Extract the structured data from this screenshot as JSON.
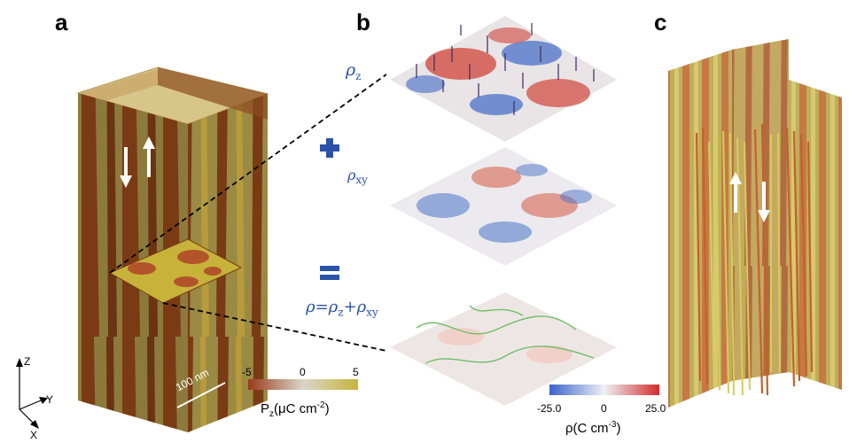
{
  "panels": {
    "a": "a",
    "b": "b",
    "c": "c"
  },
  "panel_b": {
    "rho_z": "ρ",
    "rho_z_sub": "z",
    "rho_xy": "ρ",
    "rho_xy_sub": "xy",
    "sum_eq_rho": "ρ=ρ",
    "sum_eq_sub1": "z",
    "sum_eq_plus": "+ρ",
    "sum_eq_sub2": "xy",
    "plus_symbol": "+",
    "equals_symbol": "="
  },
  "scale_bar": "100 nm",
  "axes": {
    "z": "Z",
    "y": "Y",
    "x": "X"
  },
  "colorbar_pz": {
    "ticks": [
      "-5",
      "0",
      "5"
    ],
    "title": "P",
    "title_sub": "z",
    "title_rest": "(μC cm",
    "title_sup": "-2",
    "title_close": ")",
    "colors": [
      "#9a3a1a",
      "#d9d6c8",
      "#c9b43a"
    ]
  },
  "colorbar_rho": {
    "ticks": [
      "-25.0",
      "0",
      "25.0"
    ],
    "title": "ρ(C cm",
    "title_sup": "-3",
    "title_close": ")",
    "colors": [
      "#3a63c9",
      "#eef0f3",
      "#d22b2b"
    ]
  }
}
